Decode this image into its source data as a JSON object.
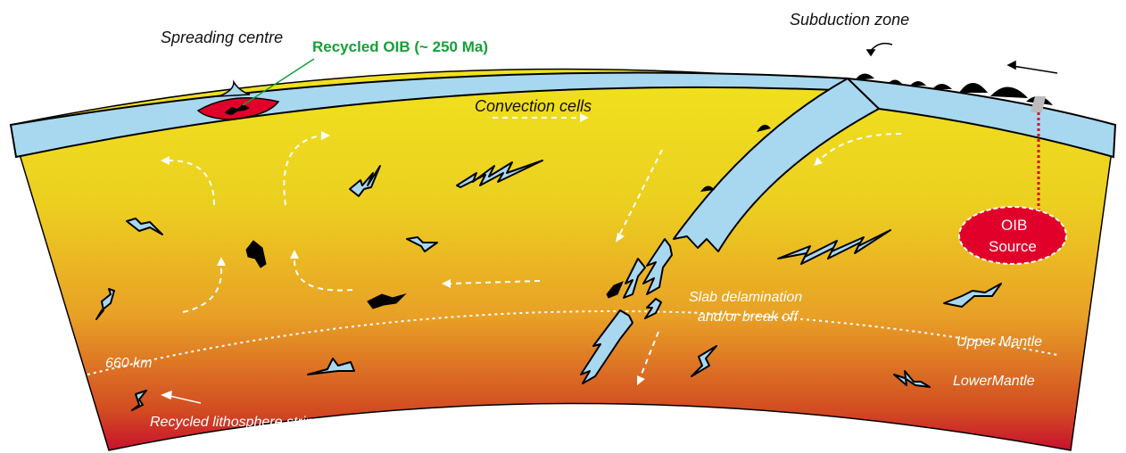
{
  "labels": {
    "spreading_centre": "Spreading centre",
    "recycled_oib": "Recycled OIB (~ 250 Ma)",
    "subduction_zone": "Subduction zone",
    "convection_cells": "Convection cells",
    "oib_source_line1": "OIB",
    "oib_source_line2": "Source",
    "slab_delamination_line1": "Slab delamination",
    "slab_delamination_line2": "and/or break off",
    "depth_660": "660 km",
    "upper_mantle": "Upper Mantle",
    "lower_mantle": "LowerMantle",
    "recycled_strip": "Recycled lithosphere strip"
  },
  "colors": {
    "mantle_top": "#f0e21e",
    "mantle_mid": "#e8a026",
    "mantle_bottom": "#c8102e",
    "lithosphere": "#a8d8f0",
    "oib_red": "#e0002a",
    "label_green": "#15a038"
  }
}
